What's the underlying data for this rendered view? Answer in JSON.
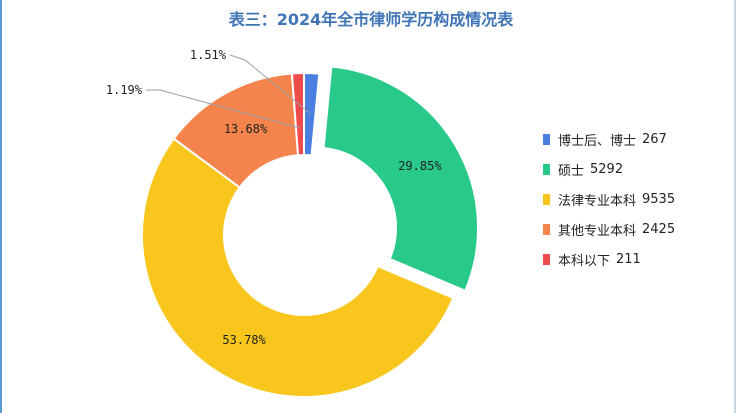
{
  "title": "表三：2024年全市律师学历构成情况表",
  "chart_data": {
    "type": "pie",
    "title": "表三：2024年全市律师学历构成情况表",
    "categories": [
      "博士后、博士",
      "硕士",
      "法律专业本科",
      "其他专业本科",
      "本科以下"
    ],
    "values": [
      267,
      5292,
      9535,
      2425,
      211
    ],
    "percent_labels": [
      "1.51%",
      "29.85%",
      "53.78%",
      "13.68%",
      "1.19%"
    ],
    "colors": [
      "#4a7fe0",
      "#28c98a",
      "#f8c61c",
      "#f4844b",
      "#ee4c4c"
    ],
    "exploded": [
      "硕士"
    ],
    "donut": true,
    "legend_position": "right"
  },
  "legend": [
    {
      "label": "博士后、博士",
      "value": "267"
    },
    {
      "label": "硕士",
      "value": "5292"
    },
    {
      "label": "法律专业本科",
      "value": "9535"
    },
    {
      "label": "其他专业本科",
      "value": "2425"
    },
    {
      "label": "本科以下",
      "value": "211"
    }
  ]
}
